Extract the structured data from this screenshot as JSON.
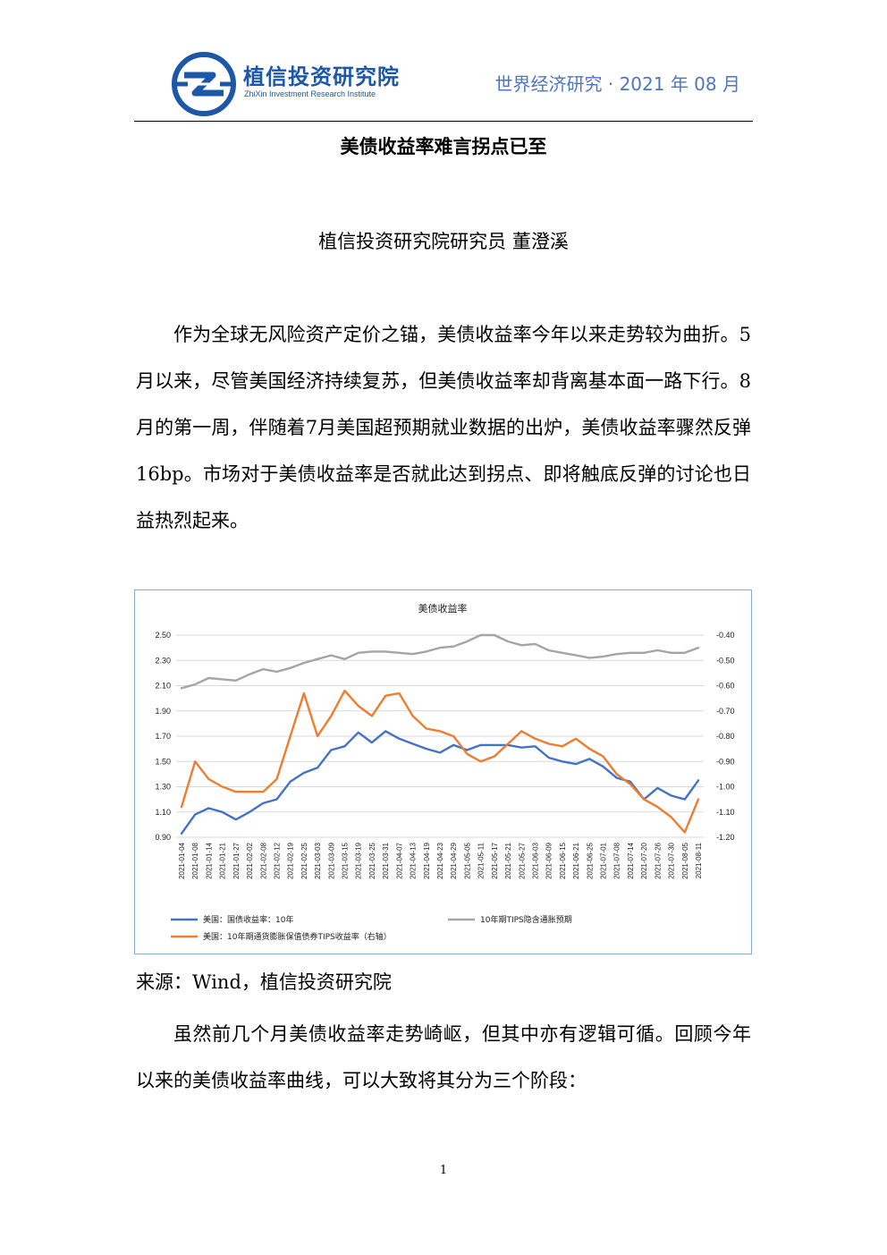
{
  "header": {
    "org_cn": "植信投资研究院",
    "org_en": "ZhiXin Investment Research Institute",
    "journal": "世界经济研究 · 2021 年 08 月"
  },
  "article": {
    "title": "美债收益率难言拐点已至",
    "byline": "植信投资研究院研究员 董澄溪",
    "paragraph1": "作为全球无风险资产定价之锚，美债收益率今年以来走势较为曲折。5月以来，尽管美国经济持续复苏，但美债收益率却背离基本面一路下行。8月的第一周，伴随着7月美国超预期就业数据的出炉，美债收益率骤然反弹16bp。市场对于美债收益率是否就此达到拐点、即将触底反弹的讨论也日益热烈起来。",
    "source": "来源：Wind，植信投资研究院",
    "paragraph2": "虽然前几个月美债收益率走势崎岖，但其中亦有逻辑可循。回顾今年以来的美债收益率曲线，可以大致将其分为三个阶段：",
    "page_number": "1"
  },
  "colors": {
    "brand_blue": "#1d57a8",
    "journal_blue": "#4d76bf",
    "series_blue": "#4472c4",
    "series_orange": "#ed7d31",
    "series_gray": "#a5a5a5"
  },
  "chart_data": {
    "type": "line",
    "title": "美债收益率",
    "x": [
      "2021-01-04",
      "2021-01-08",
      "2021-01-14",
      "2021-01-21",
      "2021-01-27",
      "2021-02-02",
      "2021-02-08",
      "2021-02-12",
      "2021-02-19",
      "2021-02-25",
      "2021-03-03",
      "2021-03-09",
      "2021-03-15",
      "2021-03-19",
      "2021-03-25",
      "2021-03-31",
      "2021-04-07",
      "2021-04-13",
      "2021-04-19",
      "2021-04-23",
      "2021-04-29",
      "2021-05-05",
      "2021-05-11",
      "2021-05-17",
      "2021-05-21",
      "2021-05-27",
      "2021-06-03",
      "2021-06-09",
      "2021-06-15",
      "2021-06-21",
      "2021-06-25",
      "2021-07-01",
      "2021-07-08",
      "2021-07-14",
      "2021-07-20",
      "2021-07-26",
      "2021-07-30",
      "2021-08-05",
      "2021-08-11"
    ],
    "x_tick_labels": [
      "2021-01-04",
      "2021-01-08",
      "2021-01-14",
      "2021-01-21",
      "2021-01-27",
      "2021-02-02",
      "2021-02-08",
      "2021-02-12",
      "2021-02-19",
      "2021-02-25",
      "2021-03-03",
      "2021-03-09",
      "2021-03-15",
      "2021-03-19",
      "2021-03-25",
      "2021-03-31",
      "2021-04-07",
      "2021-04-13",
      "2021-04-19",
      "2021-04-23",
      "2021-04-29",
      "2021-05-05",
      "2021-05-11",
      "2021-05-17",
      "2021-05-21",
      "2021-05-27",
      "2021-06-03",
      "2021-06-09",
      "2021-06-15",
      "2021-06-21",
      "2021-06-25",
      "2021-07-01",
      "2021-07-08",
      "2021-07-14",
      "2021-07-20",
      "2021-07-26",
      "2021-07-30",
      "2021-08-05",
      "2021-08-11"
    ],
    "left_axis": {
      "ylim": [
        0.9,
        2.5
      ],
      "ticks": [
        "2.50",
        "2.30",
        "2.10",
        "1.90",
        "1.70",
        "1.50",
        "1.30",
        "1.10",
        "0.90"
      ]
    },
    "right_axis": {
      "ylim": [
        -1.2,
        -0.4
      ],
      "ticks": [
        "-0.40",
        "-0.50",
        "-0.60",
        "-0.70",
        "-0.80",
        "-0.90",
        "-1.00",
        "-1.10",
        "-1.20"
      ]
    },
    "series": [
      {
        "name": "美国：国债收益率：10年",
        "axis": "left",
        "color": "#4472c4",
        "values": [
          0.93,
          1.08,
          1.13,
          1.1,
          1.04,
          1.1,
          1.17,
          1.2,
          1.34,
          1.41,
          1.45,
          1.59,
          1.62,
          1.73,
          1.65,
          1.74,
          1.68,
          1.64,
          1.6,
          1.57,
          1.63,
          1.59,
          1.63,
          1.63,
          1.63,
          1.61,
          1.62,
          1.53,
          1.5,
          1.48,
          1.52,
          1.46,
          1.37,
          1.34,
          1.2,
          1.29,
          1.23,
          1.2,
          1.35
        ]
      },
      {
        "name": "10年期TIPS隐含通胀预期",
        "axis": "left",
        "color": "#a5a5a5",
        "values": [
          2.08,
          2.11,
          2.16,
          2.15,
          2.14,
          2.19,
          2.23,
          2.21,
          2.24,
          2.28,
          2.31,
          2.34,
          2.31,
          2.36,
          2.37,
          2.37,
          2.36,
          2.35,
          2.37,
          2.4,
          2.41,
          2.45,
          2.5,
          2.5,
          2.45,
          2.42,
          2.43,
          2.38,
          2.36,
          2.34,
          2.32,
          2.33,
          2.35,
          2.36,
          2.36,
          2.38,
          2.36,
          2.36,
          2.4
        ]
      },
      {
        "name": "美国：10年期通货膨胀保值债券TIPS收益率（右轴）",
        "axis": "right",
        "color": "#ed7d31",
        "values": [
          -1.08,
          -0.9,
          -0.97,
          -1.0,
          -1.02,
          -1.02,
          -1.02,
          -0.97,
          -0.8,
          -0.63,
          -0.8,
          -0.72,
          -0.62,
          -0.68,
          -0.72,
          -0.64,
          -0.63,
          -0.72,
          -0.77,
          -0.78,
          -0.8,
          -0.87,
          -0.9,
          -0.88,
          -0.83,
          -0.78,
          -0.81,
          -0.83,
          -0.84,
          -0.81,
          -0.85,
          -0.88,
          -0.95,
          -0.99,
          -1.05,
          -1.08,
          -1.12,
          -1.18,
          -1.05
        ]
      }
    ],
    "grid": true,
    "legend_position": "bottom"
  }
}
